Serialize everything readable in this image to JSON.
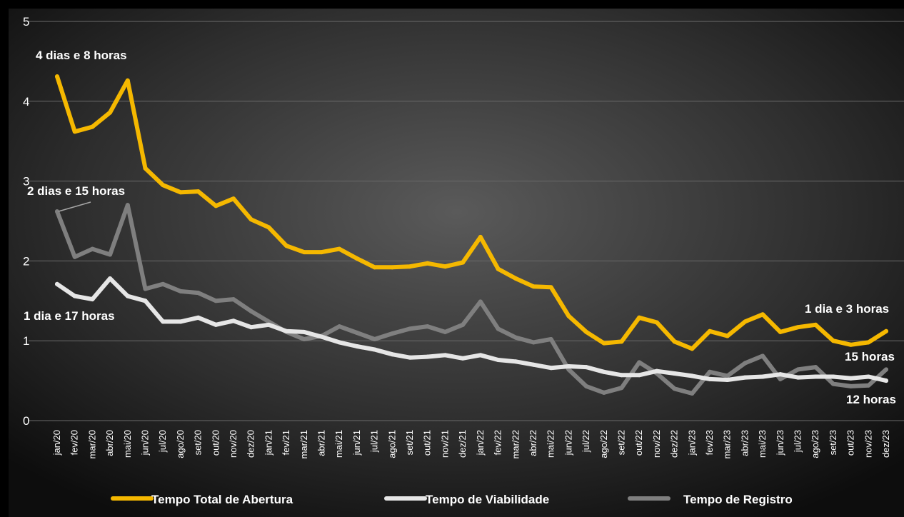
{
  "chart_data": {
    "type": "line",
    "title": "",
    "xlabel": "",
    "ylabel": "",
    "ylim": [
      0,
      5
    ],
    "yticks": [
      "0",
      "1",
      "2",
      "3",
      "4",
      "5"
    ],
    "grid": true,
    "legend_position": "bottom",
    "categories": [
      "jan/20",
      "fev/20",
      "mar/20",
      "abr/20",
      "mai/20",
      "jun/20",
      "jul/20",
      "ago/20",
      "set/20",
      "out/20",
      "nov/20",
      "dez/20",
      "jan/21",
      "fev/21",
      "mar/21",
      "abr/21",
      "mai/21",
      "jun/21",
      "jul/21",
      "ago/21",
      "set/21",
      "out/21",
      "nov/21",
      "dez/21",
      "jan/22",
      "fev/22",
      "mar/22",
      "abr/22",
      "mai/22",
      "jun/22",
      "jul/22",
      "ago/22",
      "set/22",
      "out/22",
      "nov/22",
      "dez/22",
      "jan/23",
      "fev/23",
      "mar/23",
      "abr/23",
      "mai/23",
      "jun/23",
      "jul/23",
      "ago/23",
      "set/23",
      "out/23",
      "nov/23",
      "dez/23"
    ],
    "series": [
      {
        "name": "Tempo Total de Abertura",
        "color": "#F5B800",
        "values": [
          4.31,
          3.62,
          3.68,
          3.86,
          4.26,
          3.16,
          2.95,
          2.86,
          2.87,
          2.69,
          2.78,
          2.52,
          2.42,
          2.19,
          2.11,
          2.11,
          2.15,
          2.03,
          1.92,
          1.92,
          1.93,
          1.97,
          1.93,
          1.98,
          2.3,
          1.9,
          1.78,
          1.68,
          1.67,
          1.31,
          1.11,
          0.97,
          0.99,
          1.29,
          1.23,
          0.99,
          0.9,
          1.12,
          1.06,
          1.24,
          1.33,
          1.11,
          1.17,
          1.2,
          1.0,
          0.95,
          0.98,
          1.12
        ]
      },
      {
        "name": "Tempo de Viabilidade",
        "color": "#E6E6E6",
        "values": [
          1.71,
          1.56,
          1.52,
          1.78,
          1.56,
          1.5,
          1.24,
          1.24,
          1.29,
          1.2,
          1.25,
          1.17,
          1.2,
          1.12,
          1.11,
          1.05,
          0.98,
          0.93,
          0.89,
          0.83,
          0.79,
          0.8,
          0.82,
          0.78,
          0.82,
          0.76,
          0.74,
          0.7,
          0.66,
          0.68,
          0.67,
          0.61,
          0.57,
          0.57,
          0.62,
          0.59,
          0.56,
          0.52,
          0.51,
          0.54,
          0.55,
          0.58,
          0.54,
          0.55,
          0.55,
          0.53,
          0.55,
          0.5
        ]
      },
      {
        "name": "Tempo de Registro",
        "color": "#7F7F7F",
        "values": [
          2.62,
          2.05,
          2.15,
          2.08,
          2.7,
          1.65,
          1.71,
          1.62,
          1.6,
          1.5,
          1.52,
          1.37,
          1.24,
          1.11,
          1.02,
          1.06,
          1.18,
          1.1,
          1.02,
          1.09,
          1.15,
          1.18,
          1.11,
          1.2,
          1.49,
          1.15,
          1.04,
          0.98,
          1.02,
          0.64,
          0.43,
          0.35,
          0.41,
          0.73,
          0.59,
          0.4,
          0.34,
          0.61,
          0.56,
          0.72,
          0.81,
          0.52,
          0.64,
          0.67,
          0.46,
          0.43,
          0.44,
          0.64
        ]
      }
    ],
    "annotations": [
      {
        "text": "4 dias e 8 horas",
        "series": "Tempo Total de Abertura",
        "point": "jan/20"
      },
      {
        "text": "2 dias e 15 horas",
        "series": "Tempo de Registro",
        "point": "jan/20"
      },
      {
        "text": "1 dia e 17 horas",
        "series": "Tempo de Viabilidade",
        "point": "jan/20"
      },
      {
        "text": "1 dia e 3 horas",
        "series": "Tempo Total de Abertura",
        "point": "dez/23"
      },
      {
        "text": "15 horas",
        "series": "Tempo de Registro",
        "point": "dez/23"
      },
      {
        "text": "12 horas",
        "series": "Tempo de Viabilidade",
        "point": "dez/23"
      }
    ]
  }
}
